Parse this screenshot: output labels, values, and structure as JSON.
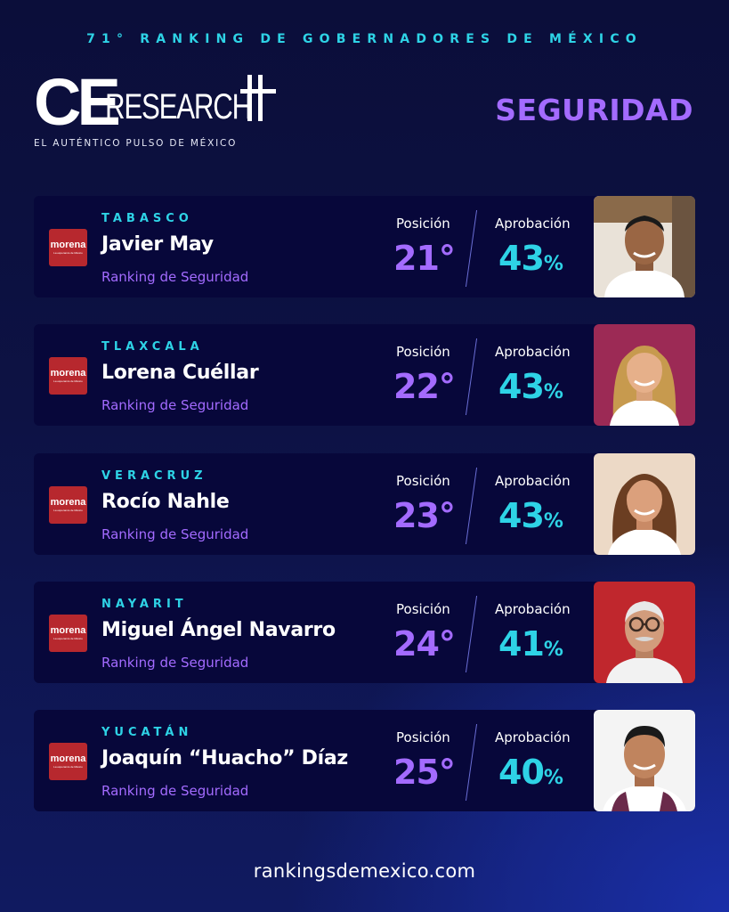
{
  "header": {
    "title": "71° RANKING DE GOBERNADORES DE MÉXICO",
    "logo_text_ce": "CE",
    "logo_text_research": "RESEARCH",
    "logo_tagline": "EL AUTÉNTICO PULSO DE MÉXICO",
    "category": "SEGURIDAD"
  },
  "labels": {
    "position": "Posición",
    "approval": "Aprobación",
    "percent_sign": "%",
    "party_name": "morena",
    "party_slogan": "La esperanza de México"
  },
  "colors": {
    "cyan_accent": "#2ed3e6",
    "purple_accent": "#a36bff",
    "card_bg": "#07073a",
    "party_red": "#b7282e"
  },
  "governors": [
    {
      "state": "TABASCO",
      "name": "Javier May",
      "subtitle": "Ranking de Seguridad",
      "position": "21°",
      "approval": "43",
      "photo_bg": "#e9e2d8"
    },
    {
      "state": "TLAXCALA",
      "name": "Lorena Cuéllar",
      "subtitle": "Ranking de Seguridad",
      "position": "22°",
      "approval": "43",
      "photo_bg": "#9c2a55"
    },
    {
      "state": "VERACRUZ",
      "name": "Rocío Nahle",
      "subtitle": "Ranking de Seguridad",
      "position": "23°",
      "approval": "43",
      "photo_bg": "#ecd9c6"
    },
    {
      "state": "NAYARIT",
      "name": "Miguel Ángel Navarro",
      "subtitle": "Ranking de Seguridad",
      "position": "24°",
      "approval": "41",
      "photo_bg": "#c0272d"
    },
    {
      "state": "YUCATÁN",
      "name": "Joaquín “Huacho” Díaz",
      "subtitle": "Ranking de Seguridad",
      "position": "25°",
      "approval": "40",
      "photo_bg": "#f4f4f4"
    }
  ],
  "footer": {
    "url": "rankingsdemexico.com"
  }
}
